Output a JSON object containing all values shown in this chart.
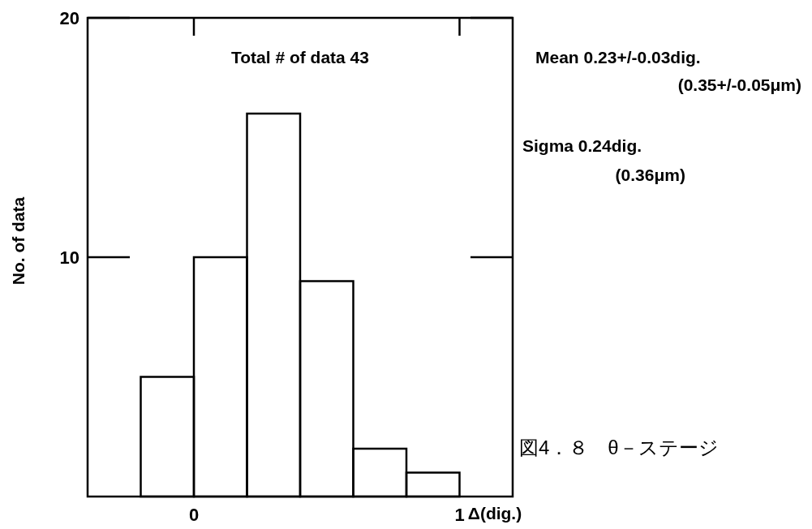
{
  "chart_data": {
    "type": "histogram",
    "xlabel": "Δ(dig.)",
    "ylabel": "No. of data",
    "bins": [
      -0.2,
      0,
      0.2,
      0.4,
      0.6,
      0.8,
      1.0
    ],
    "values": [
      5,
      10,
      16,
      9,
      2,
      1
    ],
    "color": "#000000",
    "xlim": [
      -0.4,
      1.2
    ],
    "xticks": [
      0,
      1
    ],
    "ylim": [
      0,
      20
    ],
    "yticks": [
      10,
      20
    ],
    "grid": false,
    "annotations": [
      "Total # of data  43",
      "Mean 0.23+/-0.03dig.",
      "(0.35+/-0.05μm)",
      "Sigma  0.24dig.",
      "(0.36μm)",
      "図4．８　θ－ステージ"
    ]
  }
}
